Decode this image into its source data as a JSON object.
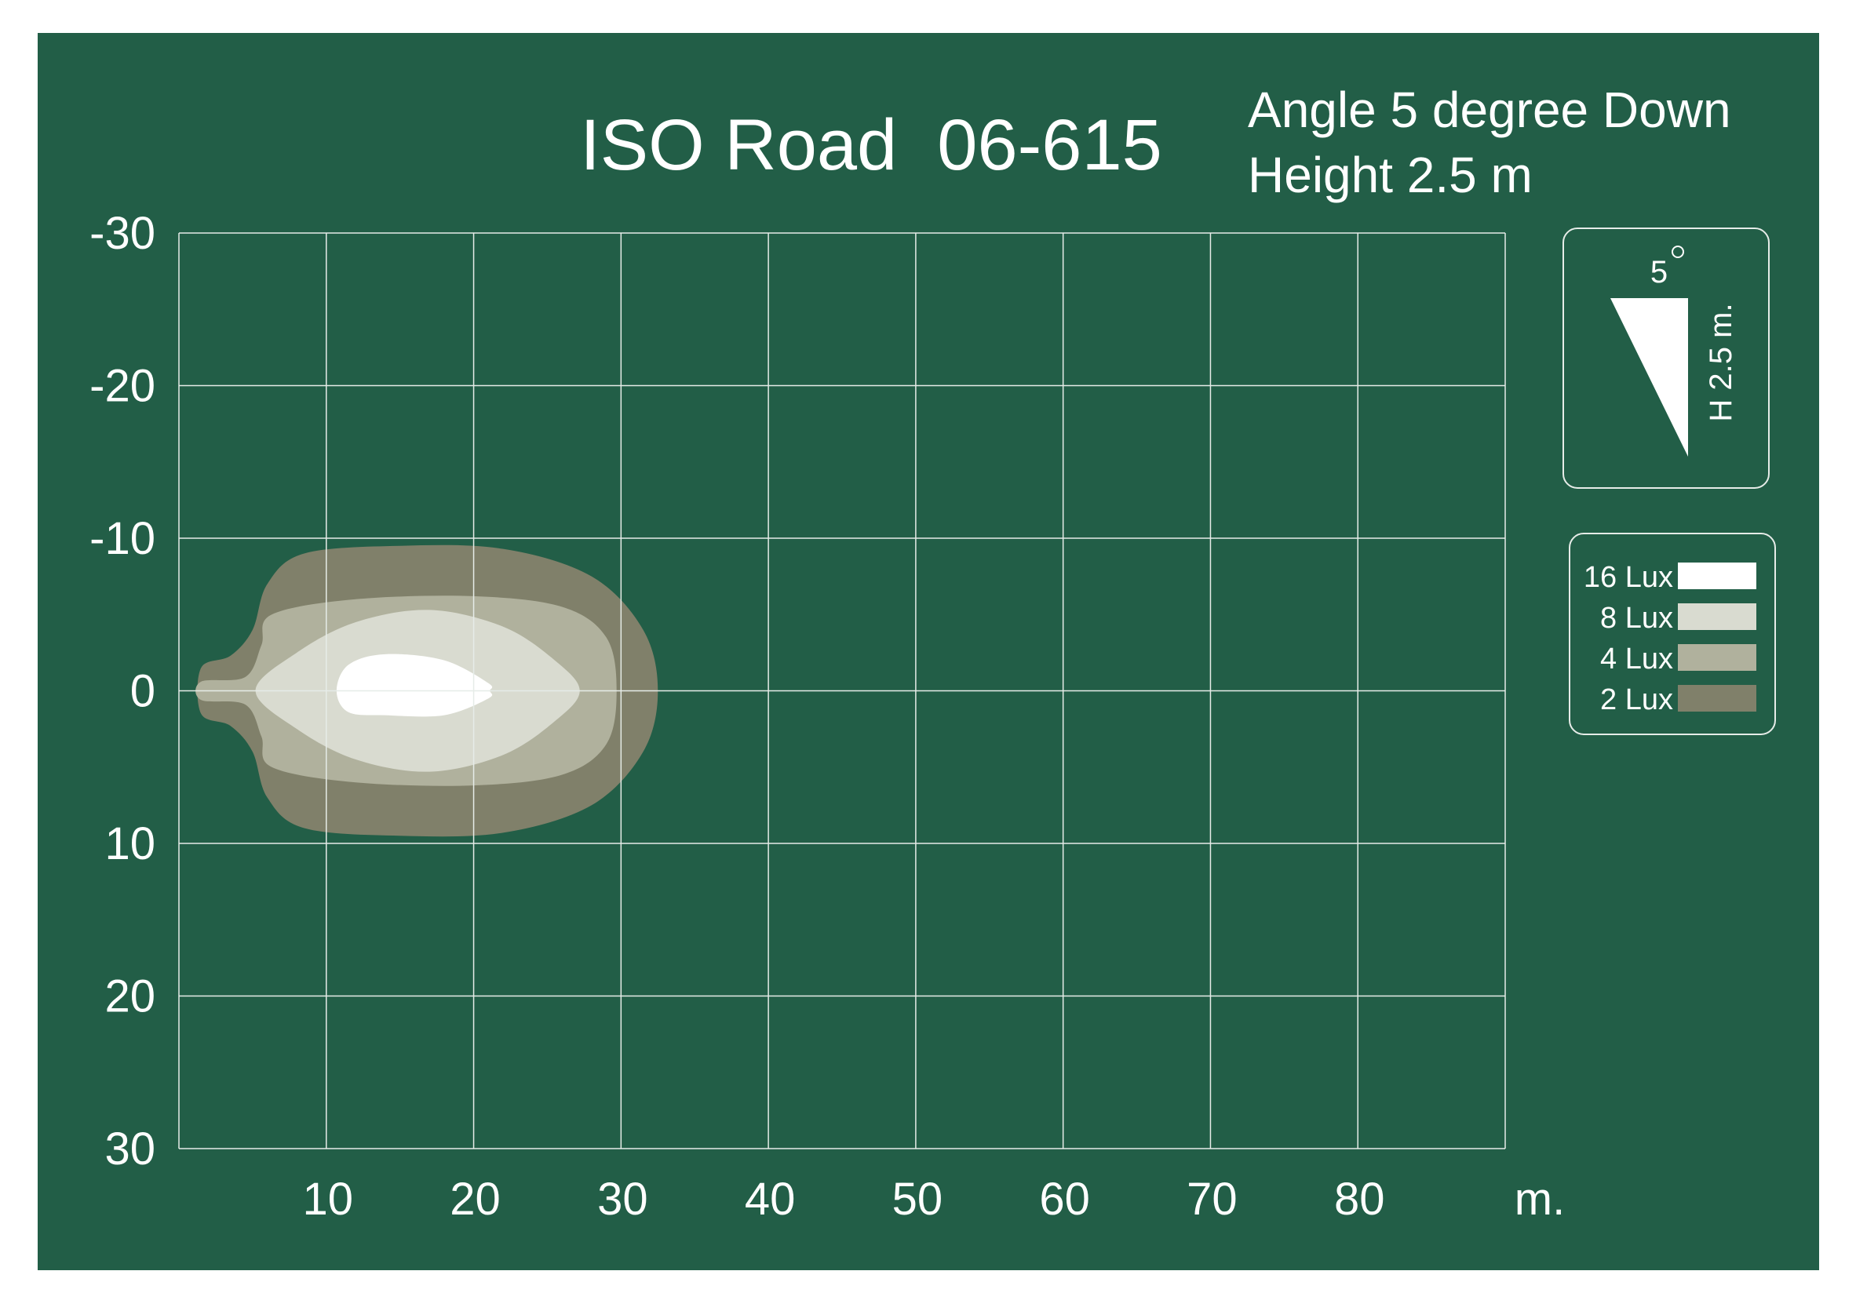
{
  "title": "ISO Road  06-615",
  "subtitle_line1": "Angle 5 degree Down",
  "subtitle_line2": "Height 2.5 m",
  "angle_label": "5",
  "height_label": "H 2.5 m.",
  "x_unit": "m.",
  "colors": {
    "background": "#225e47",
    "grid": "#e6ece8",
    "lux16": "#ffffff",
    "lux8": "#d9dbd0",
    "lux4": "#b0b19d",
    "lux2": "#80806a"
  },
  "chart_data": {
    "type": "area",
    "xlim": [
      0,
      90
    ],
    "ylim": [
      -30,
      30
    ],
    "xticks": [
      "10",
      "20",
      "30",
      "40",
      "50",
      "60",
      "70",
      "80"
    ],
    "yticks": [
      "-30",
      "-20",
      "-10",
      "0",
      "10",
      "20",
      "30"
    ],
    "grid": true,
    "legend_placement": "right",
    "series": [
      {
        "name": "2 Lux",
        "color": "#80806a",
        "outline": [
          [
            1.5,
            -1.5
          ],
          [
            3.5,
            -2.3
          ],
          [
            5,
            -4
          ],
          [
            6,
            -7
          ],
          [
            8.5,
            -9
          ],
          [
            15,
            -9.5
          ],
          [
            22,
            -9.3
          ],
          [
            28,
            -7.5
          ],
          [
            31.5,
            -4
          ],
          [
            32.5,
            0
          ],
          [
            31.5,
            4
          ],
          [
            28,
            7.5
          ],
          [
            22,
            9.3
          ],
          [
            15,
            9.5
          ],
          [
            8.5,
            9
          ],
          [
            6,
            7
          ],
          [
            5,
            4
          ],
          [
            3.5,
            2.3
          ],
          [
            1.5,
            1.5
          ]
        ]
      },
      {
        "name": "4 Lux",
        "color": "#b0b19d",
        "outline": [
          [
            1.5,
            -0.6
          ],
          [
            4.5,
            -0.9
          ],
          [
            5.6,
            -3
          ],
          [
            6.3,
            -5
          ],
          [
            12,
            -6
          ],
          [
            20,
            -6.2
          ],
          [
            26,
            -5.5
          ],
          [
            29,
            -3.5
          ],
          [
            29.7,
            0
          ],
          [
            29,
            3.5
          ],
          [
            26,
            5.5
          ],
          [
            20,
            6.2
          ],
          [
            12,
            6
          ],
          [
            6.3,
            5
          ],
          [
            5.6,
            3
          ],
          [
            4.5,
            0.9
          ],
          [
            1.5,
            0.6
          ]
        ]
      },
      {
        "name": "8 Lux",
        "color": "#d9dbd0",
        "outline": [
          [
            5.2,
            0
          ],
          [
            8,
            -2.5
          ],
          [
            12,
            -4.5
          ],
          [
            17,
            -5.3
          ],
          [
            22,
            -4.2
          ],
          [
            25.5,
            -2
          ],
          [
            27.2,
            0
          ],
          [
            25.5,
            2
          ],
          [
            22,
            4.2
          ],
          [
            17,
            5.3
          ],
          [
            12,
            4.5
          ],
          [
            8,
            2.5
          ]
        ]
      },
      {
        "name": "16 Lux",
        "color": "#ffffff",
        "outline": [
          [
            10.7,
            0
          ],
          [
            11.5,
            -1.7
          ],
          [
            14,
            -2.4
          ],
          [
            18,
            -2
          ],
          [
            21,
            -0.5
          ],
          [
            21.1,
            0
          ],
          [
            21,
            0.5
          ],
          [
            18,
            1.6
          ],
          [
            14,
            1.6
          ],
          [
            11.5,
            1.4
          ]
        ]
      }
    ],
    "legend": [
      {
        "label": "16 Lux",
        "color": "#ffffff"
      },
      {
        "label": "8 Lux",
        "color": "#d9dbd0"
      },
      {
        "label": "4 Lux",
        "color": "#b0b19d"
      },
      {
        "label": "2 Lux",
        "color": "#80806a"
      }
    ]
  }
}
